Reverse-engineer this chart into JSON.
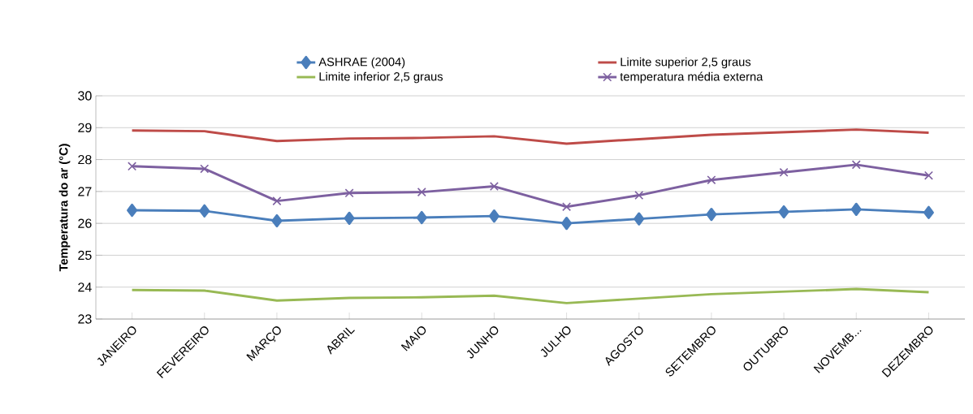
{
  "chart_data": {
    "type": "line",
    "ylabel": "Temperatura do ar (°C)",
    "categories": [
      "JANEIRO",
      "FEVEREIRO",
      "MARÇO",
      "ABRIL",
      "MAIO",
      "JUNHO",
      "JULHO",
      "AGOSTO",
      "SETEMBRO",
      "OUTUBRO",
      "NOVEMB...",
      "DEZEMBRO"
    ],
    "series": [
      {
        "name": "ASHRAE (2004)",
        "color": "#4a7ebb",
        "marker": "diamond",
        "values": [
          26.41,
          26.39,
          26.08,
          26.16,
          26.18,
          26.23,
          26.0,
          26.14,
          26.28,
          26.36,
          26.44,
          26.34
        ]
      },
      {
        "name": "Limite superior 2,5 graus",
        "color": "#be4b48",
        "marker": "none",
        "values": [
          28.91,
          28.89,
          28.58,
          28.66,
          28.68,
          28.73,
          28.5,
          28.64,
          28.78,
          28.86,
          28.94,
          28.84
        ]
      },
      {
        "name": "Limite inferior 2,5 graus",
        "color": "#98b954",
        "marker": "none",
        "values": [
          23.91,
          23.89,
          23.58,
          23.66,
          23.68,
          23.73,
          23.5,
          23.64,
          23.78,
          23.86,
          23.94,
          23.84
        ]
      },
      {
        "name": "temperatura média externa",
        "color": "#7d60a0",
        "marker": "cross",
        "values": [
          27.79,
          27.71,
          26.7,
          26.95,
          26.98,
          27.16,
          26.52,
          26.88,
          27.36,
          27.6,
          27.84,
          27.5
        ]
      }
    ],
    "ylim": [
      23,
      30
    ],
    "yticks": [
      23,
      24,
      25,
      26,
      27,
      28,
      29,
      30
    ],
    "grid": "y",
    "legend": "top"
  }
}
